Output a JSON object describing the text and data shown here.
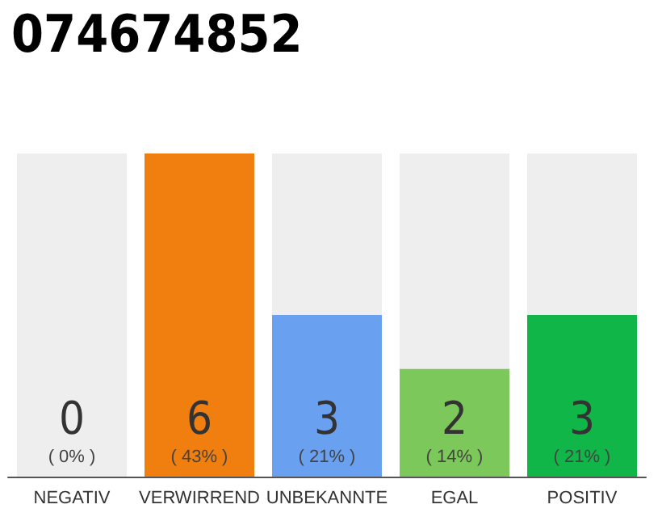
{
  "chart_data": {
    "type": "bar",
    "title": "074674852",
    "categories": [
      "NEGATIV",
      "VERWIRREND",
      "UNBEKANNTE",
      "EGAL",
      "POSITIV"
    ],
    "values": [
      0,
      6,
      3,
      2,
      3
    ],
    "colors": [
      "#555555",
      "#f07f0f",
      "#6aa0f0",
      "#7dc85a",
      "#10b648"
    ],
    "data_labels": true,
    "annotations": [
      {
        "text": "( 0% )",
        "x": "NEGATIV",
        "y": 0
      },
      {
        "text": "( 43% )",
        "x": "VERWIRREND",
        "y": 0
      },
      {
        "text": "( 21% )",
        "x": "UNBEKANNTE",
        "y": 0
      },
      {
        "text": "( 14% )",
        "x": "EGAL",
        "y": 0
      },
      {
        "text": "( 21% )",
        "x": "POSITIV",
        "y": 0
      }
    ]
  }
}
